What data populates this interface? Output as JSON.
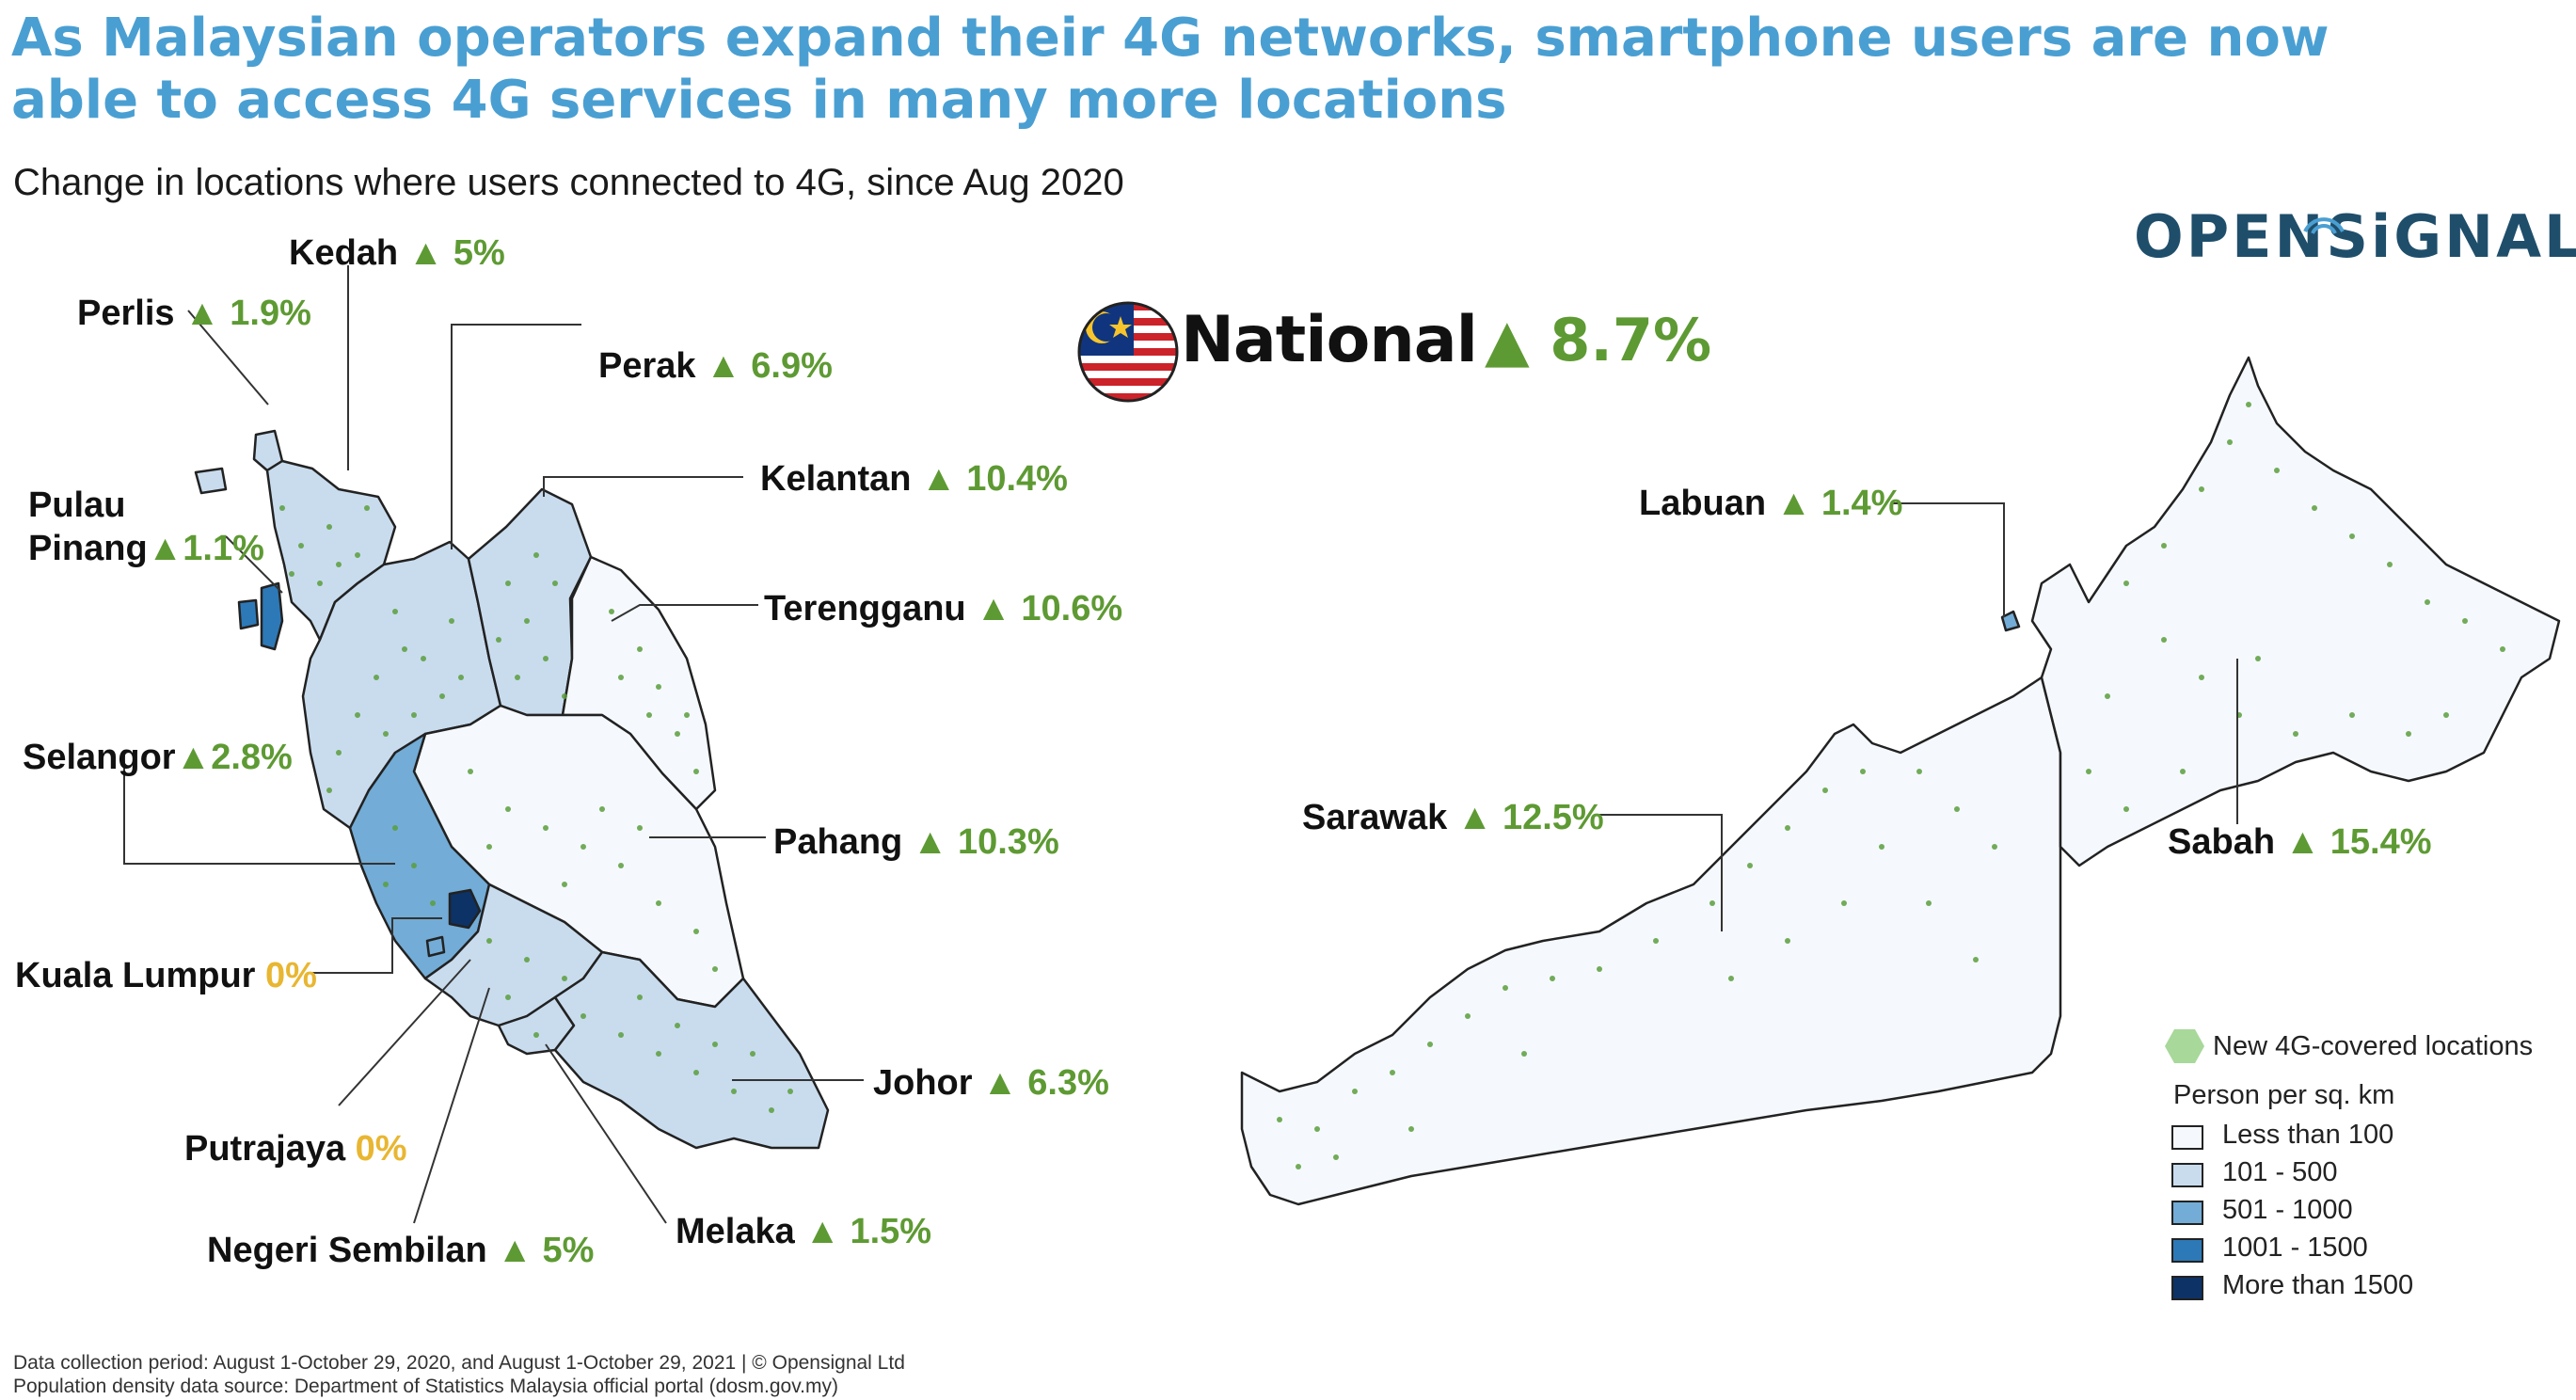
{
  "title": "As Malaysian operators expand their 4G networks, smartphone users are now able to access 4G services in many more locations",
  "subtitle": "Change in locations where users connected to 4G, since Aug 2020",
  "logo": "OPENSiGNAL",
  "national": {
    "name": "National",
    "change": "▲ 8.7%"
  },
  "states": [
    {
      "name": "Kedah",
      "change": "▲ 5%"
    },
    {
      "name": "Perlis",
      "change": "▲ 1.9%"
    },
    {
      "name": "Perak",
      "change": "▲ 6.9%"
    },
    {
      "name": "Pulau",
      "name2": "Pinang",
      "change": "▲1.1%"
    },
    {
      "name": "Kelantan",
      "change": "▲ 10.4%"
    },
    {
      "name": "Terengganu",
      "change": "▲ 10.6%"
    },
    {
      "name": "Selangor",
      "change": "▲2.8%"
    },
    {
      "name": "Pahang",
      "change": "▲ 10.3%"
    },
    {
      "name": "Kuala Lumpur",
      "change": "0%"
    },
    {
      "name": "Johor",
      "change": "▲ 6.3%"
    },
    {
      "name": "Putrajaya",
      "change": "0%"
    },
    {
      "name": "Negeri Sembilan",
      "change": "▲ 5%"
    },
    {
      "name": "Melaka",
      "change": "▲ 1.5%"
    },
    {
      "name": "Labuan",
      "change": "▲ 1.4%"
    },
    {
      "name": "Sarawak",
      "change": "▲ 12.5%"
    },
    {
      "name": "Sabah",
      "change": "▲ 15.4%"
    }
  ],
  "legend": {
    "points_label": "New 4G-covered locations",
    "density_title": "Person per sq.  km",
    "items": [
      {
        "label": "Less than 100",
        "color": "#f5f9fd"
      },
      {
        "label": "101 - 500",
        "color": "#c9dcee"
      },
      {
        "label": "501 - 1000",
        "color": "#73acd6"
      },
      {
        "label": "1001 - 1500",
        "color": "#2d79b8"
      },
      {
        "label": "More than 1500",
        "color": "#0d3266"
      }
    ]
  },
  "colors": {
    "title": "#4a9fd2",
    "increase": "#5e9a33",
    "zero": "#e8b631",
    "points": "#5a9e3c",
    "logo": "#1f4e6b"
  },
  "footer": {
    "line1": "Data collection period: August 1-October 29, 2020, and August 1-October 29, 2021 | © Opensignal Ltd",
    "line2": "Population density data source: Department of Statistics Malaysia official portal (dosm.gov.my)"
  }
}
